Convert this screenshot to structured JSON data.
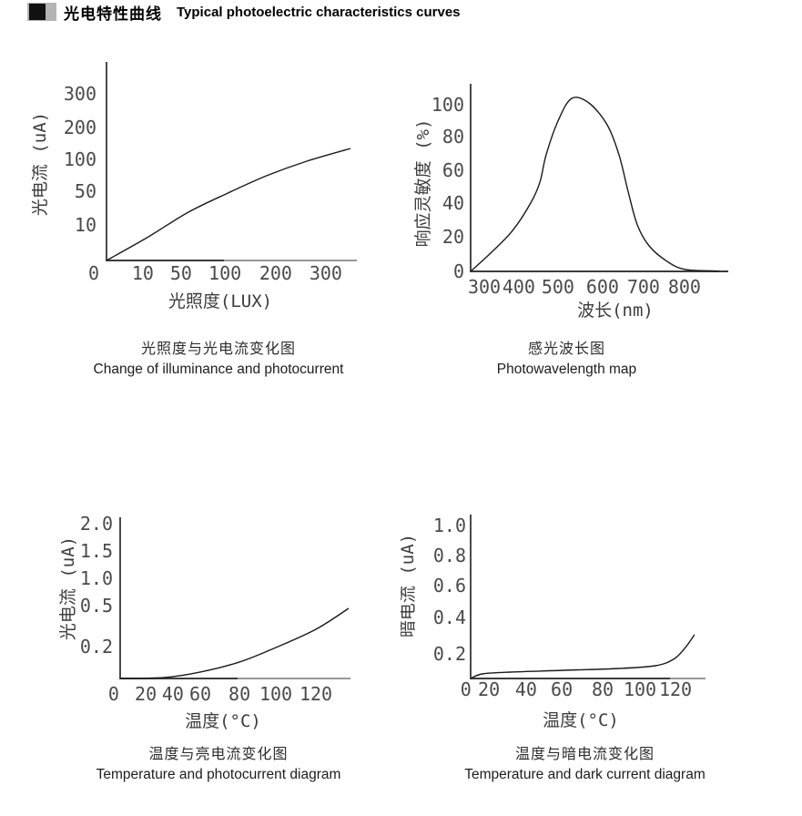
{
  "header": {
    "title_cn": "光电特性曲线",
    "title_en": "Typical photoelectric characteristics curves"
  },
  "ink_color": "#1a1a1a",
  "axis_color": "#4a4a4a",
  "chart_data": [
    {
      "id": "illuminance-photocurrent",
      "type": "line",
      "title_cn": "光照度与光电流变化图",
      "title_en": "Change of illuminance and photocurrent",
      "xlabel": "光照度(LUX)",
      "ylabel": "光电流 (uA)",
      "x_scale_note": "non-linear: tick labels equally spaced",
      "y_scale_note": "non-linear: tick labels equally spaced",
      "x_ticks": [
        {
          "label": "0",
          "f": -0.051
        },
        {
          "label": "10",
          "f": 0.145
        },
        {
          "label": "50",
          "f": 0.298
        },
        {
          "label": "100",
          "f": 0.473
        },
        {
          "label": "200",
          "f": 0.676
        },
        {
          "label": "300",
          "f": 0.876
        }
      ],
      "y_ticks": [
        {
          "label": "10",
          "f": 0.179
        },
        {
          "label": "50",
          "f": 0.349
        },
        {
          "label": "100",
          "f": 0.509
        },
        {
          "label": "200",
          "f": 0.67
        },
        {
          "label": "300",
          "f": 0.839
        }
      ],
      "curve_f": [
        [
          0,
          0
        ],
        [
          0.167,
          0.119
        ],
        [
          0.327,
          0.243
        ],
        [
          0.484,
          0.339
        ],
        [
          0.64,
          0.427
        ],
        [
          0.8,
          0.5
        ],
        [
          0.975,
          0.564
        ]
      ],
      "points_est": [
        [
          0,
          0
        ],
        [
          10,
          7
        ],
        [
          50,
          20
        ],
        [
          100,
          46
        ],
        [
          200,
          79
        ],
        [
          300,
          103
        ]
      ]
    },
    {
      "id": "spectral-response",
      "type": "line",
      "title_cn": "感光波长图",
      "title_en": "Photowavelength map",
      "xlabel": "波长(nm)",
      "ylabel": "响应灵敏度 (%)",
      "x_ticks": [
        {
          "label": "300",
          "f": 0.053
        },
        {
          "label": "400",
          "f": 0.187
        },
        {
          "label": "500",
          "f": 0.339
        },
        {
          "label": "600",
          "f": 0.512
        },
        {
          "label": "700",
          "f": 0.671
        },
        {
          "label": "800",
          "f": 0.83
        }
      ],
      "y_ticks": [
        {
          "label": "0",
          "f": 0.0
        },
        {
          "label": "20",
          "f": 0.184
        },
        {
          "label": "40",
          "f": 0.364
        },
        {
          "label": "60",
          "f": 0.539
        },
        {
          "label": "80",
          "f": 0.718
        },
        {
          "label": "100",
          "f": 0.888
        }
      ],
      "curve_f": [
        [
          0,
          0
        ],
        [
          0.081,
          0.102
        ],
        [
          0.163,
          0.218
        ],
        [
          0.233,
          0.364
        ],
        [
          0.269,
          0.476
        ],
        [
          0.293,
          0.621
        ],
        [
          0.339,
          0.801
        ],
        [
          0.392,
          0.922
        ],
        [
          0.459,
          0.898
        ],
        [
          0.53,
          0.781
        ],
        [
          0.576,
          0.621
        ],
        [
          0.611,
          0.427
        ],
        [
          0.647,
          0.248
        ],
        [
          0.693,
          0.136
        ],
        [
          0.763,
          0.053
        ],
        [
          0.834,
          0.01
        ],
        [
          0.965,
          0.002
        ]
      ],
      "points_est": [
        [
          300,
          0
        ],
        [
          350,
          12
        ],
        [
          400,
          22
        ],
        [
          450,
          50
        ],
        [
          480,
          75
        ],
        [
          500,
          89
        ],
        [
          520,
          100
        ],
        [
          540,
          105
        ],
        [
          560,
          103
        ],
        [
          600,
          85
        ],
        [
          650,
          69
        ],
        [
          700,
          21
        ],
        [
          750,
          8
        ],
        [
          800,
          0
        ]
      ]
    },
    {
      "id": "temperature-photocurrent",
      "type": "line",
      "title_cn": "温度与亮电流变化图",
      "title_en": "Temperature and photocurrent diagram",
      "xlabel": "温度(°C)",
      "ylabel": "光电流 (uA)",
      "y_scale_note": "non-linear: tick labels equally spaced",
      "x_ticks": [
        {
          "label": "0",
          "f": -0.028
        },
        {
          "label": "20",
          "f": 0.111
        },
        {
          "label": "40",
          "f": 0.229
        },
        {
          "label": "60",
          "f": 0.348
        },
        {
          "label": "80",
          "f": 0.518
        },
        {
          "label": "100",
          "f": 0.676
        },
        {
          "label": "120",
          "f": 0.85
        }
      ],
      "y_ticks": [
        {
          "label": "0.2",
          "f": 0.198
        },
        {
          "label": "0.5",
          "f": 0.452
        },
        {
          "label": "1.0",
          "f": 0.621
        },
        {
          "label": "1.5",
          "f": 0.791
        },
        {
          "label": "2.0",
          "f": 0.96
        }
      ],
      "curve_f": [
        [
          0,
          0
        ],
        [
          0.19,
          0.006
        ],
        [
          0.348,
          0.04
        ],
        [
          0.518,
          0.102
        ],
        [
          0.676,
          0.192
        ],
        [
          0.85,
          0.305
        ],
        [
          0.992,
          0.435
        ]
      ],
      "points_est": [
        [
          20,
          0.01
        ],
        [
          40,
          0.02
        ],
        [
          60,
          0.04
        ],
        [
          80,
          0.1
        ],
        [
          100,
          0.19
        ],
        [
          120,
          0.33
        ],
        [
          135,
          0.48
        ]
      ]
    },
    {
      "id": "temperature-darkcurrent",
      "type": "line",
      "title_cn": "温度与暗电流变化图",
      "title_en": "Temperature and dark current diagram",
      "xlabel": "温度(°C)",
      "ylabel": "暗电流 (uA)",
      "x_ticks": [
        {
          "label": "0",
          "f": -0.02
        },
        {
          "label": "20",
          "f": 0.078
        },
        {
          "label": "40",
          "f": 0.236
        },
        {
          "label": "60",
          "f": 0.388
        },
        {
          "label": "80",
          "f": 0.562
        },
        {
          "label": "100",
          "f": 0.721
        },
        {
          "label": "120",
          "f": 0.872
        }
      ],
      "y_ticks": [
        {
          "label": "0.2",
          "f": 0.15
        },
        {
          "label": "0.4",
          "f": 0.372
        },
        {
          "label": "0.6",
          "f": 0.567
        },
        {
          "label": "0.8",
          "f": 0.75
        },
        {
          "label": "1.0",
          "f": 0.933
        }
      ],
      "curve_f": [
        [
          0,
          0
        ],
        [
          0.05,
          0.028
        ],
        [
          0.167,
          0.039
        ],
        [
          0.399,
          0.05
        ],
        [
          0.632,
          0.061
        ],
        [
          0.787,
          0.078
        ],
        [
          0.864,
          0.117
        ],
        [
          0.911,
          0.183
        ],
        [
          0.953,
          0.267
        ]
      ],
      "points_est": [
        [
          0,
          0
        ],
        [
          20,
          0.05
        ],
        [
          40,
          0.06
        ],
        [
          60,
          0.07
        ],
        [
          80,
          0.07
        ],
        [
          100,
          0.08
        ],
        [
          120,
          0.1
        ],
        [
          130,
          0.2
        ],
        [
          135,
          0.3
        ]
      ]
    }
  ]
}
